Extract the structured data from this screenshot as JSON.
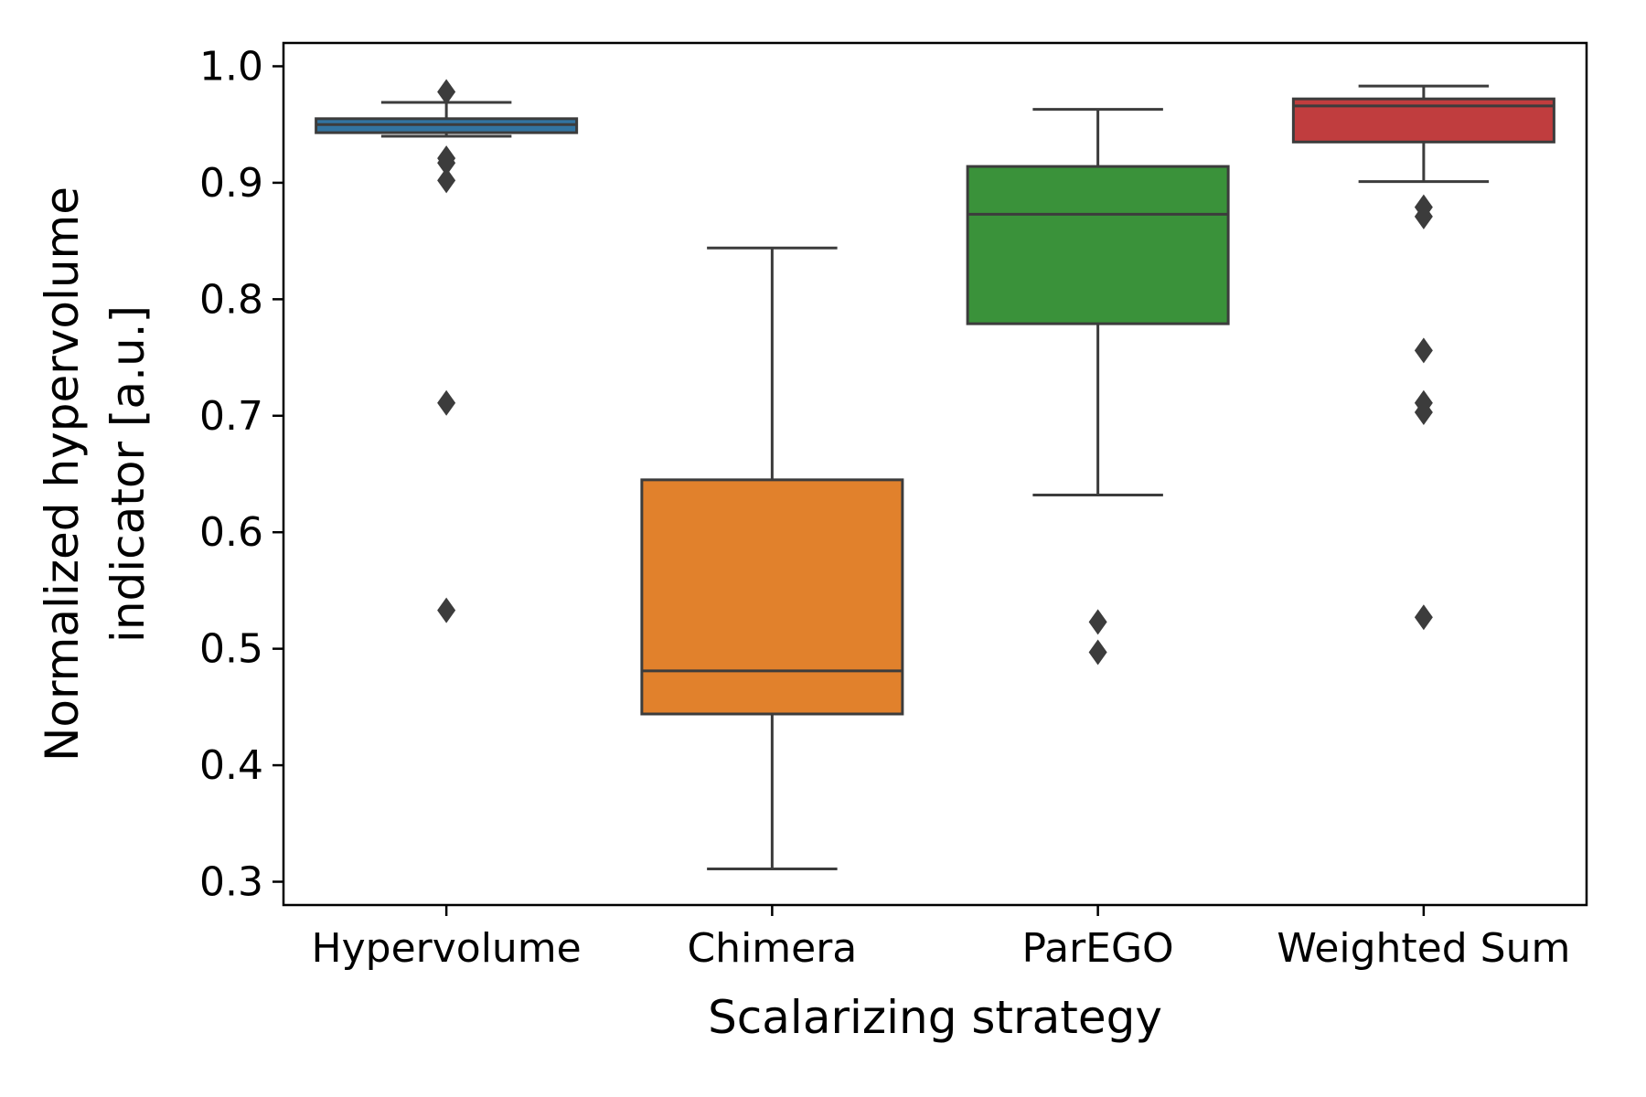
{
  "chart_data": {
    "type": "box",
    "xlabel": "Scalarizing strategy",
    "ylabel_lines": [
      "Normalized hypervolume",
      "indicator [a.u.]"
    ],
    "ylim": [
      0.28,
      1.02
    ],
    "yticks": [
      "0.3",
      "0.4",
      "0.5",
      "0.6",
      "0.7",
      "0.8",
      "0.9",
      "1.0"
    ],
    "grid": false,
    "categories": [
      "Hypervolume",
      "Chimera",
      "ParEGO",
      "Weighted Sum"
    ],
    "series": [
      {
        "category": "Hypervolume",
        "color": "#3274a1",
        "whisker_low": 0.94,
        "q1": 0.943,
        "median": 0.95,
        "q3": 0.955,
        "whisker_high": 0.969,
        "outliers": [
          0.978,
          0.921,
          0.917,
          0.902,
          0.711,
          0.533
        ]
      },
      {
        "category": "Chimera",
        "color": "#e1812c",
        "whisker_low": 0.311,
        "q1": 0.444,
        "median": 0.481,
        "q3": 0.645,
        "whisker_high": 0.844,
        "outliers": []
      },
      {
        "category": "ParEGO",
        "color": "#3a923a",
        "whisker_low": 0.632,
        "q1": 0.779,
        "median": 0.873,
        "q3": 0.914,
        "whisker_high": 0.963,
        "outliers": [
          0.523,
          0.497
        ]
      },
      {
        "category": "Weighted Sum",
        "color": "#c03d3e",
        "whisker_low": 0.901,
        "q1": 0.935,
        "median": 0.966,
        "q3": 0.972,
        "whisker_high": 0.983,
        "outliers": [
          0.879,
          0.871,
          0.756,
          0.711,
          0.703,
          0.527
        ]
      }
    ]
  }
}
